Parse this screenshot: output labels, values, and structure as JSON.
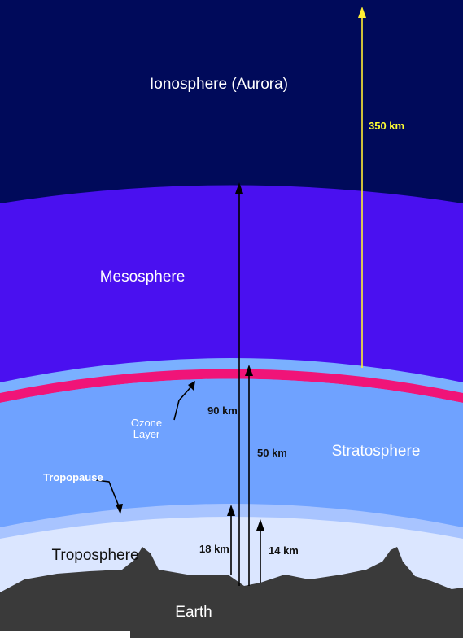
{
  "layers": {
    "ionosphere": {
      "label": "Ionosphere (Aurora)",
      "color": "#000a5a"
    },
    "mesosphere": {
      "label": "Mesosphere",
      "color": "#4a10f0"
    },
    "ozone_band": {
      "color": "#f01478"
    },
    "stratosphere": {
      "label": "Stratosphere",
      "color": "#6fa2ff"
    },
    "troposphere": {
      "label": "Troposphere",
      "color": "#dbe6ff"
    },
    "earth": {
      "label": "Earth",
      "color": "#3a3a3a"
    }
  },
  "annotations": {
    "ozone_line1": "Ozone",
    "ozone_line2": "Layer",
    "tropopause": "Tropopause"
  },
  "altitudes": {
    "km350": "350 km",
    "km90": "90 km",
    "km50": "50 km",
    "km18": "18 km",
    "km14": "14 km"
  },
  "colors": {
    "yellow_arrow": "#ffee33",
    "black_arrow": "#000000",
    "white_bottom_strip": "#ffffff"
  }
}
